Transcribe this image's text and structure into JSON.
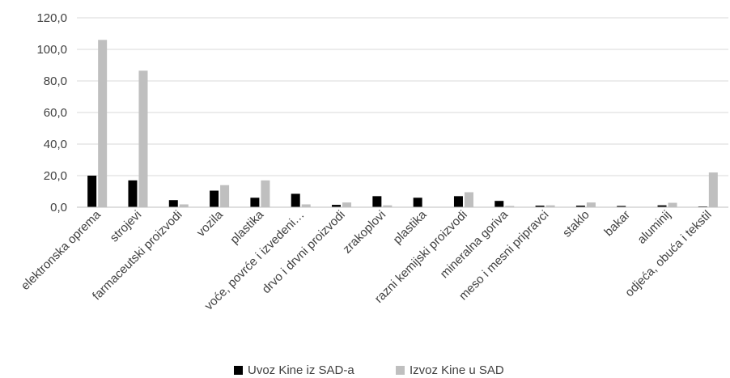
{
  "chart_data": {
    "type": "bar",
    "categories": [
      "elektronska oprema",
      "strojevi",
      "farmaceutski proizvodi",
      "vozila",
      "plastika",
      "voće, povrće i izvedeni…",
      "drvo i drvni proizvodi",
      "zrakoplovi",
      "plastika",
      "razni kemijski proizvodi",
      "mineralna goriva",
      "meso i mesni pripravci",
      "staklo",
      "bakar",
      "aluminij",
      "odjeća, obuća i tekstil"
    ],
    "series": [
      {
        "name": "Uvoz Kine iz SAD-a",
        "color": "#000000",
        "values": [
          20.0,
          17.0,
          4.5,
          10.5,
          6.0,
          8.5,
          1.5,
          7.0,
          6.0,
          7.0,
          4.0,
          1.0,
          1.0,
          0.8,
          1.2,
          0.5
        ]
      },
      {
        "name": "Izvoz Kine u SAD",
        "color": "#BFBFBF",
        "values": [
          106.0,
          86.5,
          1.8,
          14.0,
          17.0,
          1.8,
          3.0,
          1.2,
          0.0,
          9.5,
          0.8,
          1.2,
          3.0,
          0.0,
          2.8,
          22.0
        ]
      }
    ],
    "y_ticks": [
      "0,0",
      "20,0",
      "40,0",
      "60,0",
      "80,0",
      "100,0",
      "120,0"
    ],
    "ylim": [
      0,
      120
    ],
    "grid": true,
    "legend_position": "bottom"
  }
}
